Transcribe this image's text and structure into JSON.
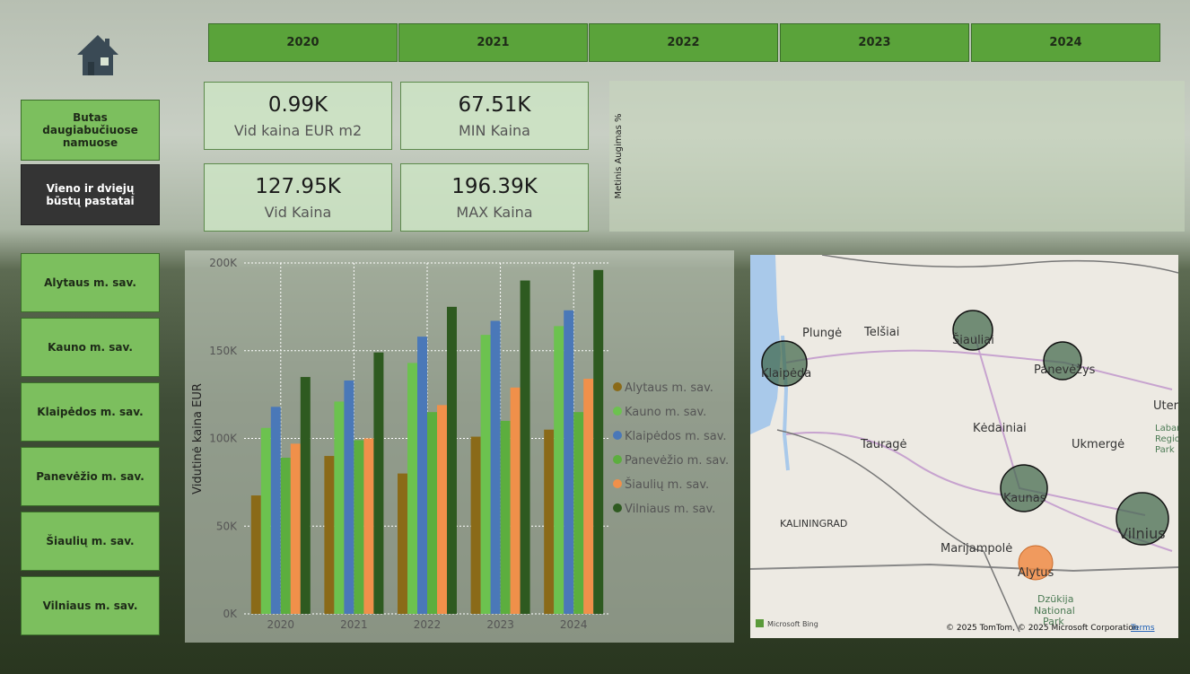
{
  "header": {
    "years": [
      "2020",
      "2021",
      "2022",
      "2023",
      "2024"
    ]
  },
  "type_buttons": [
    "Butas daugiabučiuose namuose",
    "Vieno ir dviejų būstų pastatai"
  ],
  "kpis": [
    {
      "value": "0.99K",
      "label": "Vid kaina EUR m2"
    },
    {
      "value": "67.51K",
      "label": "MIN Kaina"
    },
    {
      "value": "127.95K",
      "label": "Vid Kaina"
    },
    {
      "value": "196.39K",
      "label": "MAX Kaina"
    }
  ],
  "side_panel": {
    "axis_label": "Metinis Augimas %"
  },
  "region_buttons": [
    "Alytaus m. sav.",
    "Kauno m. sav.",
    "Klaipėdos m. sav.",
    "Panevėžio m. sav.",
    "Šiaulių m. sav.",
    "Vilniaus m. sav."
  ],
  "chart_data": {
    "type": "bar",
    "ylabel": "Vidutinė kaina EUR",
    "categories": [
      "2020",
      "2021",
      "2022",
      "2023",
      "2024"
    ],
    "series": [
      {
        "name": "Alytaus m. sav.",
        "color": "#8a6a18",
        "values": [
          67500,
          90000,
          80000,
          101000,
          105000
        ]
      },
      {
        "name": "Kauno m. sav.",
        "color": "#6cc24f",
        "values": [
          106000,
          121000,
          143000,
          159000,
          164000
        ]
      },
      {
        "name": "Klaipėdos m. sav.",
        "color": "#4a78b8",
        "values": [
          118000,
          133000,
          158000,
          167000,
          173000
        ]
      },
      {
        "name": "Panevėžio m. sav.",
        "color": "#5cae3e",
        "values": [
          89000,
          99000,
          115000,
          110000,
          115000
        ]
      },
      {
        "name": "Šiaulių m. sav.",
        "color": "#f0904a",
        "values": [
          97000,
          100000,
          119000,
          129000,
          134000
        ]
      },
      {
        "name": "Vilniaus m. sav.",
        "color": "#2e5a20",
        "values": [
          135000,
          149000,
          175000,
          190000,
          196000
        ]
      }
    ],
    "ylim": [
      0,
      200000
    ],
    "yticks": [
      {
        "value": 0,
        "label": "0K"
      },
      {
        "value": 50000,
        "label": "50K"
      },
      {
        "value": 100000,
        "label": "100K"
      },
      {
        "value": 150000,
        "label": "150K"
      },
      {
        "value": 200000,
        "label": "200K"
      }
    ],
    "grid": true
  },
  "map": {
    "labels": [
      "Plungė",
      "Telšiai",
      "Šiauliai",
      "Panevėžys",
      "Klaipėda",
      "Kėdainiai",
      "Tauragė",
      "Ukmergė",
      "Kaunas",
      "Vilnius",
      "KALININGRAD",
      "Marijampolė",
      "Alytus",
      "Dzūkija",
      "National",
      "Park",
      "Uter",
      "Labar",
      "Regio",
      "Park"
    ],
    "attribution": "© 2025 TomTom, © 2025 Microsoft Corporation",
    "terms": "Terms",
    "logo": "Microsoft Bing"
  }
}
